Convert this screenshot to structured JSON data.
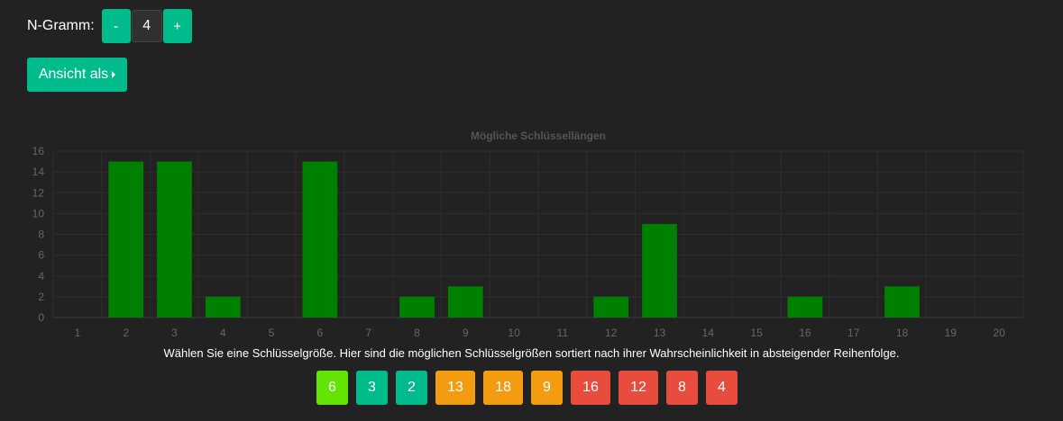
{
  "ngram": {
    "label": "N-Gramm:",
    "minus_label": "-",
    "value": "4",
    "plus_label": "+"
  },
  "view_button": {
    "label": "Ansicht als"
  },
  "caption": "Wählen Sie eine Schlüsselgröße. Hier sind die möglichen Schlüsselgrößen sortiert nach ihrer Wahrscheinlichkeit in absteigender Reihenfolge.",
  "key_buttons": [
    {
      "label": "6",
      "color": "#62e404"
    },
    {
      "label": "3",
      "color": "#00bc8c"
    },
    {
      "label": "2",
      "color": "#00bc8c"
    },
    {
      "label": "13",
      "color": "#f39c12"
    },
    {
      "label": "18",
      "color": "#f39c12"
    },
    {
      "label": "9",
      "color": "#f39c12"
    },
    {
      "label": "16",
      "color": "#e74c3c"
    },
    {
      "label": "12",
      "color": "#e74c3c"
    },
    {
      "label": "8",
      "color": "#e74c3c"
    },
    {
      "label": "4",
      "color": "#e74c3c"
    }
  ],
  "chart_data": {
    "type": "bar",
    "title": "Mögliche Schlüssellängen",
    "categories": [
      "1",
      "2",
      "3",
      "4",
      "5",
      "6",
      "7",
      "8",
      "9",
      "10",
      "11",
      "12",
      "13",
      "14",
      "15",
      "16",
      "17",
      "18",
      "19",
      "20"
    ],
    "values": [
      0,
      15,
      15,
      2,
      0,
      15,
      0,
      2,
      3,
      0,
      0,
      2,
      9,
      0,
      0,
      2,
      0,
      3,
      0,
      0
    ],
    "yticks": [
      "0",
      "2",
      "4",
      "6",
      "8",
      "10",
      "12",
      "14",
      "16"
    ],
    "ylim": [
      0,
      16
    ],
    "grid": true,
    "bar_color": "#008000"
  }
}
